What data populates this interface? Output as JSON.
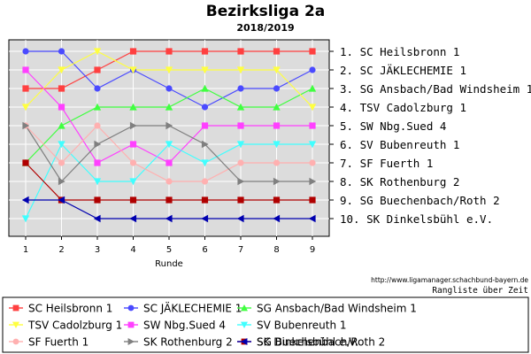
{
  "chart_data": {
    "type": "line",
    "title": "Bezirksliga 2a",
    "subtitle": "2018/2019",
    "xlabel": "Runde",
    "x": [
      1,
      2,
      3,
      4,
      5,
      6,
      7,
      8,
      9
    ],
    "ylim": [
      1,
      10
    ],
    "y_inverted": true,
    "grid": true,
    "source": "http://www.ligamanager.schachbund-bayern.de",
    "caption": "Rangliste über Zeit",
    "standings": [
      "1. SC Heilsbronn 1",
      "2. SC JÄKLECHEMIE 1",
      "3. SG Ansbach/Bad Windsheim 1",
      "4. TSV Cadolzburg 1",
      "5. SW Nbg.Sued 4",
      "6. SV Bubenreuth 1",
      "7. SF Fuerth 1",
      "8. SK Rothenburg 2",
      "9. SG Buechenbach/Roth 2",
      "10. SK Dinkelsbühl e.V."
    ],
    "legend_position": "bottom",
    "series": [
      {
        "name": "SC Heilsbronn 1",
        "color": "#ff4040",
        "marker": "square",
        "values": [
          3,
          3,
          2,
          1,
          1,
          1,
          1,
          1,
          1
        ]
      },
      {
        "name": "SC JÄKLECHEMIE 1",
        "color": "#4a4aff",
        "marker": "circle",
        "values": [
          1,
          1,
          3,
          2,
          3,
          4,
          3,
          3,
          2
        ]
      },
      {
        "name": "SG Ansbach/Bad Windsheim 1",
        "color": "#40ff40",
        "marker": "triangle-up",
        "values": [
          7,
          5,
          4,
          4,
          4,
          3,
          4,
          4,
          3
        ]
      },
      {
        "name": "TSV Cadolzburg 1",
        "color": "#ffff40",
        "marker": "triangle-down",
        "values": [
          4,
          2,
          1,
          2,
          2,
          2,
          2,
          2,
          4
        ]
      },
      {
        "name": "SW Nbg.Sued 4",
        "color": "#ff40ff",
        "marker": "square",
        "values": [
          2,
          4,
          7,
          6,
          7,
          5,
          5,
          5,
          5
        ]
      },
      {
        "name": "SV Bubenreuth 1",
        "color": "#40ffff",
        "marker": "triangle-down",
        "values": [
          10,
          6,
          8,
          8,
          6,
          7,
          6,
          6,
          6
        ]
      },
      {
        "name": "SF Fuerth 1",
        "color": "#ffb0b0",
        "marker": "circle",
        "values": [
          5,
          7,
          5,
          7,
          8,
          8,
          7,
          7,
          7
        ]
      },
      {
        "name": "SK Rothenburg 2",
        "color": "#808080",
        "marker": "triangle-right",
        "values": [
          5,
          8,
          6,
          5,
          5,
          6,
          8,
          8,
          8
        ]
      },
      {
        "name": "SG Buechenbach/Roth 2",
        "color": "#b00000",
        "marker": "square",
        "values": [
          7,
          9,
          9,
          9,
          9,
          9,
          9,
          9,
          9
        ]
      },
      {
        "name": "SK Dinkelsbühl e.V.",
        "color": "#0000b0",
        "marker": "triangle-left",
        "values": [
          9,
          9,
          10,
          10,
          10,
          10,
          10,
          10,
          10
        ]
      }
    ]
  }
}
